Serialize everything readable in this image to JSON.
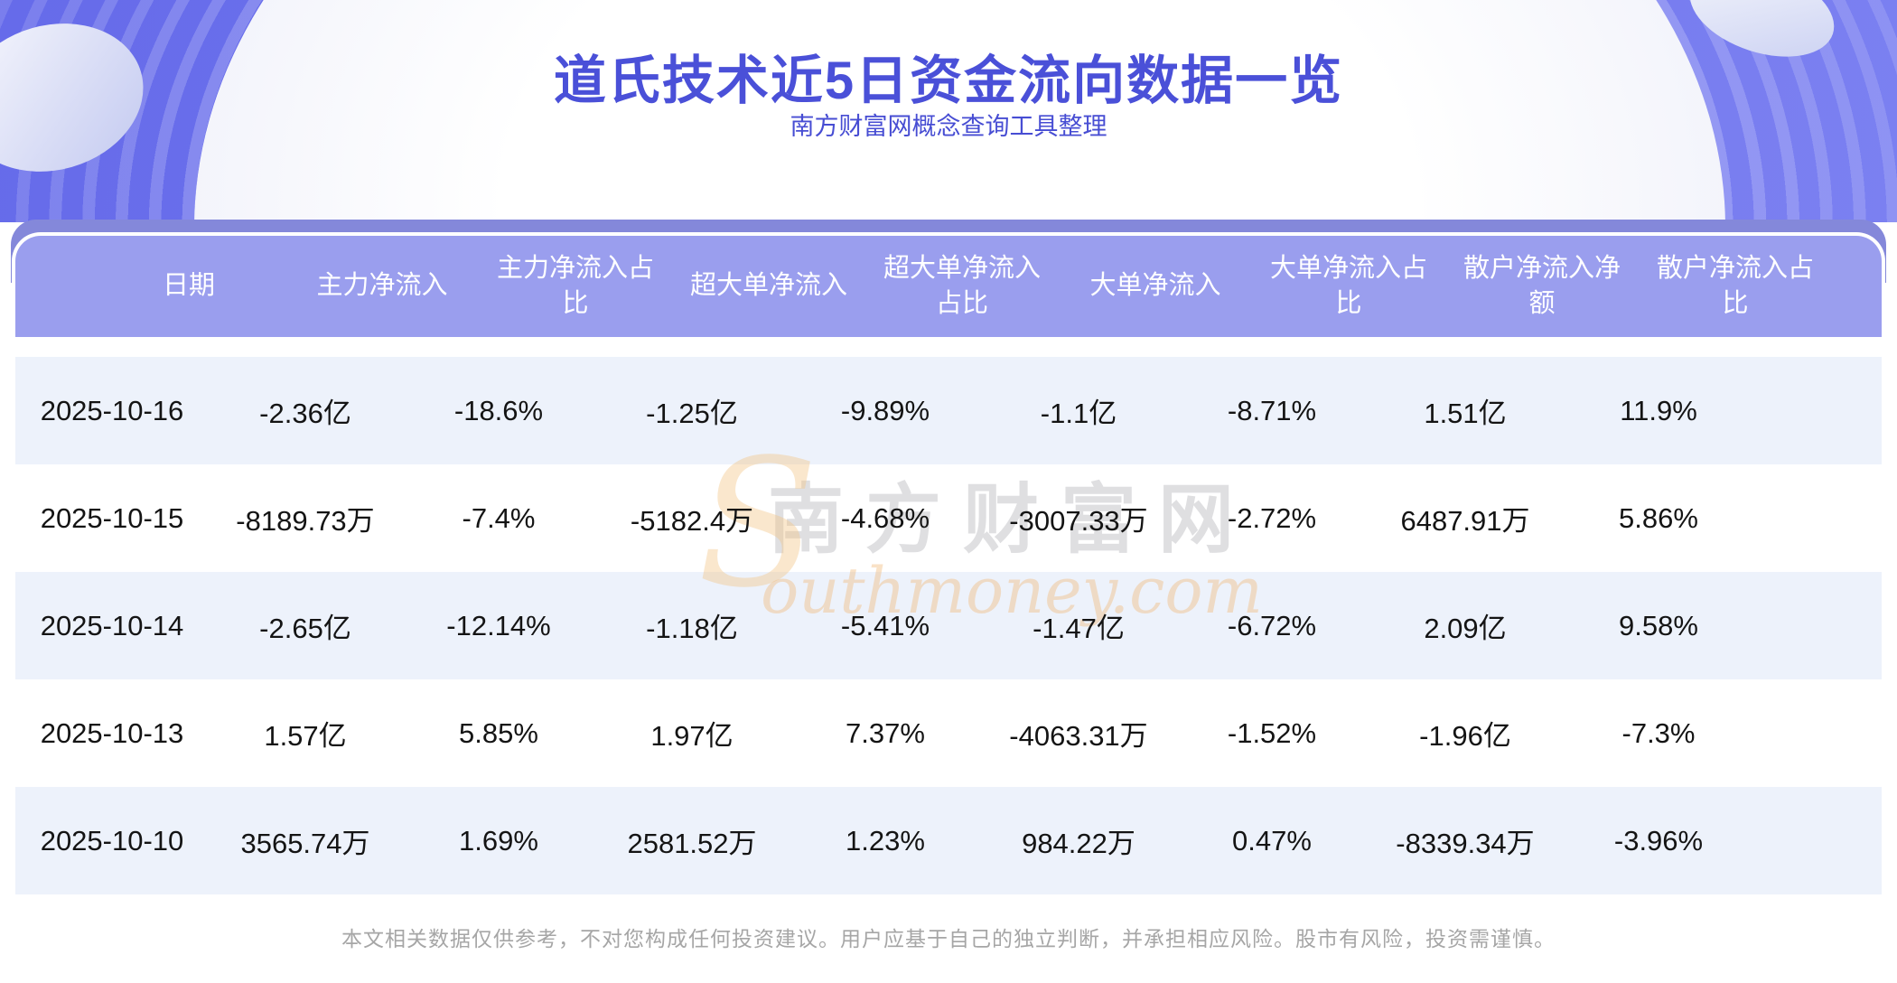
{
  "page": {
    "title": "道氏技术近5日资金流向数据一览",
    "subtitle": "南方财富网概念查询工具整理",
    "disclaimer": "本文相关数据仅供参考，不对您构成任何投资建议。用户应基于自己的独立判断，并承担相应风险。股市有风险，投资需谨慎。"
  },
  "watermark": {
    "cn": "南方财富网",
    "en_initial": "S",
    "en_rest": "outhmoney.com"
  },
  "table": {
    "columns": [
      "日期",
      "主力净流入",
      "主力净流入占比",
      "超大单净流入",
      "超大单净流入占比",
      "大单净流入",
      "大单净流入占比",
      "散户净流入净额",
      "散户净流入占比"
    ],
    "rows": [
      [
        "2025-10-16",
        "-2.36亿",
        "-18.6%",
        "-1.25亿",
        "-9.89%",
        "-1.1亿",
        "-8.71%",
        "1.51亿",
        "11.9%"
      ],
      [
        "2025-10-15",
        "-8189.73万",
        "-7.4%",
        "-5182.4万",
        "-4.68%",
        "-3007.33万",
        "-2.72%",
        "6487.91万",
        "5.86%"
      ],
      [
        "2025-10-14",
        "-2.65亿",
        "-12.14%",
        "-1.18亿",
        "-5.41%",
        "-1.47亿",
        "-6.72%",
        "2.09亿",
        "9.58%"
      ],
      [
        "2025-10-13",
        "1.57亿",
        "5.85%",
        "1.97亿",
        "7.37%",
        "-4063.31万",
        "-1.52%",
        "-1.96亿",
        "-7.3%"
      ],
      [
        "2025-10-10",
        "3565.74万",
        "1.69%",
        "2581.52万",
        "1.23%",
        "984.22万",
        "0.47%",
        "-8339.34万",
        "-3.96%"
      ]
    ]
  },
  "chart_data": {
    "type": "table",
    "title": "道氏技术近5日资金流向数据一览",
    "categories": [
      "2025-10-16",
      "2025-10-15",
      "2025-10-14",
      "2025-10-13",
      "2025-10-10"
    ],
    "series": [
      {
        "name": "主力净流入",
        "values": [
          "-2.36亿",
          "-8189.73万",
          "-2.65亿",
          "1.57亿",
          "3565.74万"
        ]
      },
      {
        "name": "主力净流入占比",
        "values": [
          "-18.6%",
          "-7.4%",
          "-12.14%",
          "5.85%",
          "1.69%"
        ]
      },
      {
        "name": "超大单净流入",
        "values": [
          "-1.25亿",
          "-5182.4万",
          "-1.18亿",
          "1.97亿",
          "2581.52万"
        ]
      },
      {
        "name": "超大单净流入占比",
        "values": [
          "-9.89%",
          "-4.68%",
          "-5.41%",
          "7.37%",
          "1.23%"
        ]
      },
      {
        "name": "大单净流入",
        "values": [
          "-1.1亿",
          "-3007.33万",
          "-1.47亿",
          "-4063.31万",
          "984.22万"
        ]
      },
      {
        "name": "大单净流入占比",
        "values": [
          "-8.71%",
          "-2.72%",
          "-6.72%",
          "-1.52%",
          "0.47%"
        ]
      },
      {
        "name": "散户净流入净额",
        "values": [
          "1.51亿",
          "6487.91万",
          "2.09亿",
          "-1.96亿",
          "-8339.34万"
        ]
      },
      {
        "name": "散户净流入占比",
        "values": [
          "11.9%",
          "5.86%",
          "9.58%",
          "-7.3%",
          "-3.96%"
        ]
      }
    ]
  },
  "colors": {
    "banner_blue": "#6a6eec",
    "title_text": "#4a50d8",
    "header_band": "#9a9eee",
    "band_shadow": "#8488da",
    "row_alt": "#edf2fb",
    "watermark_orange": "#f1bb7a",
    "disclaimer_gray": "#a6a6a6"
  }
}
